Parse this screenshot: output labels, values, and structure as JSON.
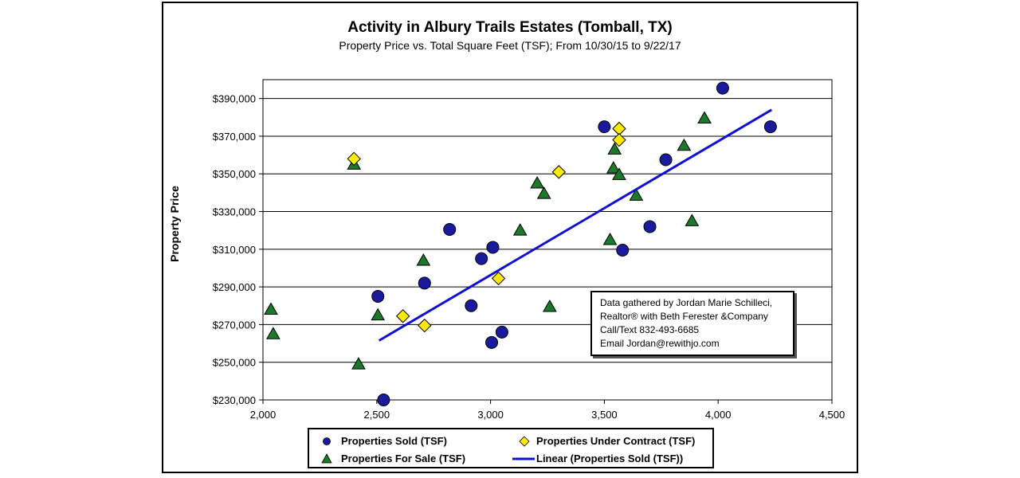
{
  "chart_data": {
    "type": "scatter",
    "title": "Activity in Albury Trails Estates (Tomball, TX)",
    "subtitle": "Property Price vs. Total Square Feet (TSF); From 10/30/15 to 9/22/17",
    "xlabel": "",
    "ylabel": "Property Price",
    "xlim": [
      2000,
      4500
    ],
    "ylim": [
      230000,
      400000
    ],
    "x_ticks": [
      2000,
      2500,
      3000,
      3500,
      4000,
      4500
    ],
    "x_tick_labels": [
      "2,000",
      "2,500",
      "3,000",
      "3,500",
      "4,000",
      "4,500"
    ],
    "y_ticks": [
      230000,
      250000,
      270000,
      290000,
      310000,
      330000,
      350000,
      370000,
      390000
    ],
    "y_tick_labels": [
      "$230,000",
      "$250,000",
      "$270,000",
      "$290,000",
      "$310,000",
      "$330,000",
      "$350,000",
      "$370,000",
      "$390,000"
    ],
    "grid": "horizontal",
    "series": [
      {
        "name": "Properties Sold  (TSF)",
        "marker": "circle",
        "color": "#1a1a9c",
        "points": [
          [
            2505,
            285000
          ],
          [
            2530,
            230000
          ],
          [
            2710,
            292000
          ],
          [
            2820,
            320500
          ],
          [
            2915,
            280000
          ],
          [
            2960,
            305000
          ],
          [
            3010,
            311000
          ],
          [
            3005,
            260500
          ],
          [
            3050,
            266000
          ],
          [
            3500,
            375000
          ],
          [
            3580,
            309500
          ],
          [
            3700,
            322000
          ],
          [
            3770,
            357500
          ],
          [
            4020,
            395500
          ],
          [
            4230,
            375000
          ]
        ]
      },
      {
        "name": "Properties Under Contract  (TSF)",
        "marker": "diamond",
        "color": "#ffeb00",
        "points": [
          [
            2400,
            358000
          ],
          [
            2615,
            274500
          ],
          [
            2710,
            269500
          ],
          [
            3035,
            294500
          ],
          [
            3300,
            351000
          ],
          [
            3565,
            374000
          ],
          [
            3565,
            368000
          ]
        ]
      },
      {
        "name": "Properties For Sale  (TSF)",
        "marker": "triangle",
        "color": "#1b7a2a",
        "points": [
          [
            2035,
            278000
          ],
          [
            2045,
            265000
          ],
          [
            2400,
            355000
          ],
          [
            2420,
            249000
          ],
          [
            2505,
            275000
          ],
          [
            2705,
            304000
          ],
          [
            3130,
            320000
          ],
          [
            3205,
            345000
          ],
          [
            3235,
            339500
          ],
          [
            3260,
            279500
          ],
          [
            3525,
            315000
          ],
          [
            3540,
            353000
          ],
          [
            3545,
            363000
          ],
          [
            3565,
            349500
          ],
          [
            3640,
            338500
          ],
          [
            3850,
            365000
          ],
          [
            3885,
            325000
          ],
          [
            3940,
            379500
          ]
        ]
      }
    ],
    "trendline": {
      "name": "Linear  (Properties Sold  (TSF))",
      "color": "#1010d0",
      "x": [
        2510,
        4235
      ],
      "y": [
        261500,
        384000
      ]
    },
    "legend": [
      {
        "marker": "circle",
        "label": "Properties Sold  (TSF)"
      },
      {
        "marker": "diamond",
        "label": "Properties Under Contract  (TSF)"
      },
      {
        "marker": "triangle",
        "label": "Properties For Sale  (TSF)"
      },
      {
        "marker": "line",
        "label": "Linear  (Properties Sold  (TSF))"
      }
    ],
    "legend_position": "bottom",
    "annotation": [
      "Data gathered by Jordan Marie Schilleci,",
      "Realtor® with Beth Ferester &Company",
      "Call/Text 832-493-6685",
      "Email Jordan@rewithjo.com"
    ]
  }
}
